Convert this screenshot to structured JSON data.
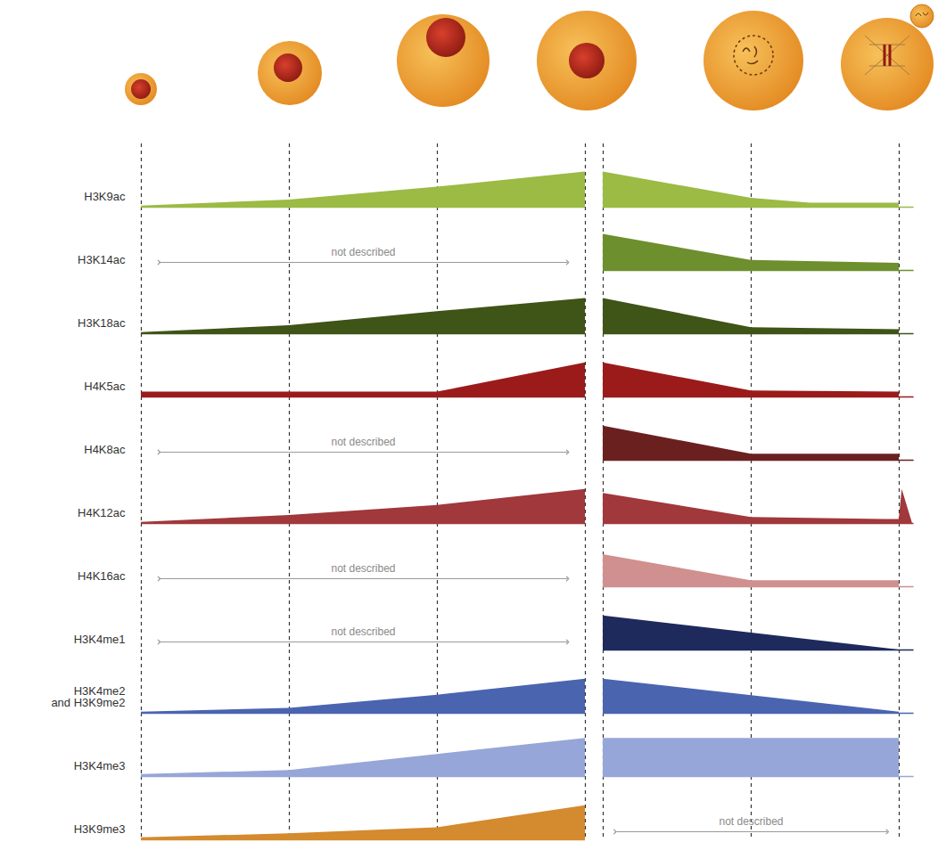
{
  "chart_data": {
    "type": "area",
    "tick_labels": false,
    "ylim": [
      0,
      100
    ],
    "panels": [
      {
        "xlim": [
          0,
          3
        ],
        "xticks": [
          0,
          1,
          2,
          3
        ]
      },
      {
        "xlim": [
          0,
          2.1
        ],
        "xticks": [
          0,
          1,
          2
        ]
      }
    ],
    "series": [
      {
        "name": "H3K9ac",
        "color": "#9bbb45",
        "panels": [
          {
            "x": [
              0,
              1,
              2,
              3
            ],
            "values": [
              3,
              18,
              50,
              88
            ]
          },
          {
            "x": [
              0,
              1,
              1.4,
              2
            ],
            "values": [
              88,
              22,
              10,
              10
            ]
          }
        ]
      },
      {
        "name": "H3K14ac",
        "color": "#6e8f2e",
        "panels": [
          {
            "note": "not described"
          },
          {
            "x": [
              0,
              1,
              2
            ],
            "values": [
              90,
              25,
              18
            ]
          }
        ]
      },
      {
        "name": "H3K18ac",
        "color": "#3f5417",
        "panels": [
          {
            "x": [
              0,
              1,
              2,
              3
            ],
            "values": [
              3,
              20,
              55,
              88
            ]
          },
          {
            "x": [
              0,
              1,
              2
            ],
            "values": [
              88,
              15,
              10
            ]
          }
        ]
      },
      {
        "name": "H4K5ac",
        "color": "#9b1b1b",
        "panels": [
          {
            "x": [
              0,
              2,
              3
            ],
            "values": [
              12,
              12,
              85
            ]
          },
          {
            "x": [
              0,
              1,
              2
            ],
            "values": [
              85,
              15,
              12
            ]
          }
        ]
      },
      {
        "name": "H4K8ac",
        "color": "#6b2020",
        "panels": [
          {
            "note": "not described"
          },
          {
            "x": [
              0,
              1,
              2
            ],
            "values": [
              85,
              15,
              15
            ]
          }
        ]
      },
      {
        "name": "H4K12ac",
        "color": "#a0383c",
        "panels": [
          {
            "x": [
              0,
              1,
              2,
              3
            ],
            "values": [
              3,
              20,
              45,
              85
            ]
          },
          {
            "x": [
              0,
              1,
              1.9,
              2,
              2.02,
              2.09
            ],
            "values": [
              75,
              15,
              10,
              10,
              85,
              0
            ]
          }
        ]
      },
      {
        "name": "H4K16ac",
        "color": "#d09090",
        "panels": [
          {
            "note": "not described"
          },
          {
            "x": [
              0,
              1,
              2
            ],
            "values": [
              80,
              15,
              15
            ]
          }
        ]
      },
      {
        "name": "H3K4me1",
        "color": "#1f2a5c",
        "panels": [
          {
            "note": "not described"
          },
          {
            "x": [
              0,
              2
            ],
            "values": [
              85,
              0
            ]
          }
        ]
      },
      {
        "name": "H3K4me2\nand H3K9me2",
        "color": "#4a64b0",
        "panels": [
          {
            "x": [
              0,
              1,
              2,
              3
            ],
            "values": [
              3,
              12,
              45,
              85
            ]
          },
          {
            "x": [
              0,
              2
            ],
            "values": [
              85,
              3
            ]
          }
        ]
      },
      {
        "name": "H3K4me3",
        "color": "#97a6d8",
        "panels": [
          {
            "x": [
              0,
              1,
              2,
              3
            ],
            "values": [
              5,
              15,
              55,
              95
            ]
          },
          {
            "x": [
              0,
              2
            ],
            "values": [
              95,
              95
            ]
          }
        ]
      },
      {
        "name": "H3K9me3",
        "color": "#d48a2e",
        "panels": [
          {
            "x": [
              0,
              1,
              2,
              3
            ],
            "values": [
              5,
              15,
              30,
              85
            ]
          },
          {
            "note": "not described"
          }
        ]
      }
    ]
  }
}
